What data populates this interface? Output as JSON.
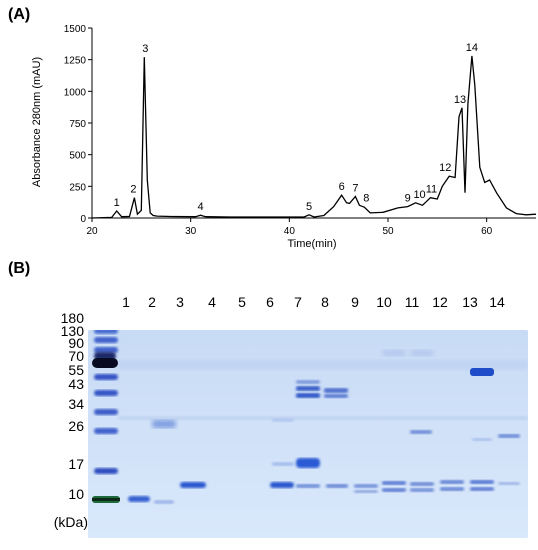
{
  "panel_a_label": "(A)",
  "panel_b_label": "(B)",
  "chart_data": {
    "type": "line",
    "title": "",
    "xlabel": "Time(min)",
    "ylabel": "Absorbance 280nm (mAU)",
    "xlim": [
      20,
      65
    ],
    "ylim": [
      0,
      1500
    ],
    "xticks": [
      20,
      30,
      40,
      50,
      60
    ],
    "yticks": [
      0,
      250,
      500,
      750,
      1000,
      1250,
      1500
    ],
    "series": [
      {
        "x": [
          20,
          22.0,
          22.5,
          23.0,
          23.8,
          24.3,
          24.6,
          25.0,
          25.3,
          25.6,
          25.9,
          26.2,
          26.6,
          28,
          30.5,
          31.0,
          31.5,
          34,
          38,
          41.5,
          42.0,
          42.5,
          43.5,
          44.5,
          45.3,
          45.8,
          46.1,
          46.7,
          47.1,
          47.6,
          48.2,
          49.5,
          51.0,
          52.0,
          52.8,
          53.5,
          54.3,
          55.0,
          55.5,
          56.2,
          56.8,
          57.2,
          57.5,
          57.8,
          58.1,
          58.5,
          58.8,
          59.3,
          59.8,
          60.3,
          61.0,
          62.0,
          63.0,
          64.0,
          65.0
        ],
        "y": [
          0,
          5,
          55,
          10,
          12,
          160,
          30,
          60,
          1270,
          300,
          40,
          20,
          15,
          12,
          10,
          22,
          10,
          8,
          8,
          8,
          25,
          8,
          20,
          90,
          180,
          120,
          115,
          170,
          100,
          85,
          40,
          45,
          80,
          90,
          120,
          100,
          160,
          150,
          250,
          330,
          320,
          800,
          870,
          200,
          900,
          1280,
          1050,
          400,
          280,
          300,
          200,
          80,
          35,
          25,
          30
        ]
      }
    ],
    "peak_labels": [
      {
        "label": "1",
        "x": 22.5,
        "y": 55
      },
      {
        "label": "2",
        "x": 24.2,
        "y": 160
      },
      {
        "label": "3",
        "x": 25.4,
        "y": 1270
      },
      {
        "label": "4",
        "x": 31.0,
        "y": 22
      },
      {
        "label": "5",
        "x": 42.0,
        "y": 25
      },
      {
        "label": "6",
        "x": 45.3,
        "y": 180
      },
      {
        "label": "7",
        "x": 46.7,
        "y": 170
      },
      {
        "label": "8",
        "x": 47.8,
        "y": 90
      },
      {
        "label": "9",
        "x": 52.0,
        "y": 90
      },
      {
        "label": "10",
        "x": 53.2,
        "y": 120
      },
      {
        "label": "11",
        "x": 54.4,
        "y": 160
      },
      {
        "label": "12",
        "x": 55.8,
        "y": 330
      },
      {
        "label": "13",
        "x": 57.3,
        "y": 870
      },
      {
        "label": "14",
        "x": 58.5,
        "y": 1280
      }
    ]
  },
  "gel": {
    "lane_labels": [
      "1",
      "2",
      "3",
      "4",
      "5",
      "6",
      "7",
      "8",
      "9",
      "10",
      "11",
      "12",
      "13",
      "14"
    ],
    "marker_labels": [
      "180",
      "130",
      "90",
      "70",
      "55",
      "43",
      "34",
      "26",
      "17",
      "10"
    ],
    "unit_label": "(kDa)"
  }
}
